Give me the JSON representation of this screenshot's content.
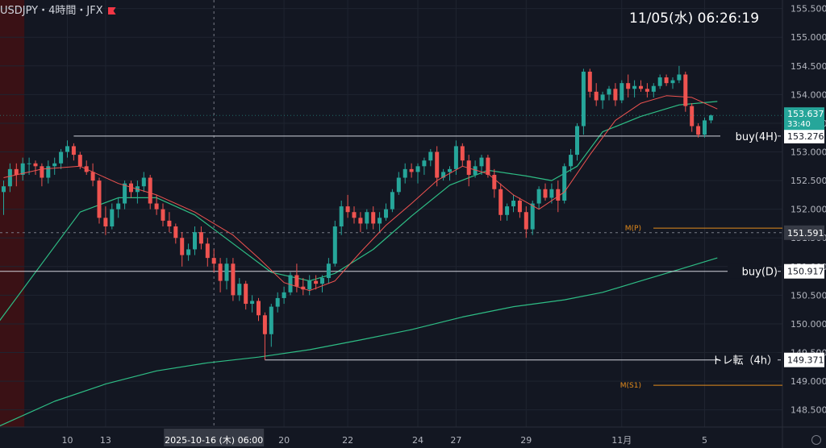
{
  "header": {
    "symbol_info": "USDJPY・4時間・JFX",
    "datetime": "11/05(水)   06:26:19"
  },
  "colors": {
    "background": "#131722",
    "up": "#26a69a",
    "down": "#ef5350",
    "ma_short": "#ef5350",
    "ma_mid": "#2ebd85",
    "ma_long": "#2ebd85",
    "pivot_line": "#e38b1c",
    "hline": "#d1d4dc",
    "grid": "#1f2430"
  },
  "chart_data": {
    "type": "candlestick",
    "title": "",
    "ylim": [
      148.2,
      155.65
    ],
    "y_ticks": [
      "155.500",
      "155.000",
      "154.500",
      "154.000",
      "153.500",
      "153.000",
      "152.500",
      "152.000",
      "151.500",
      "151.000",
      "150.500",
      "150.000",
      "149.500",
      "149.000",
      "148.500"
    ],
    "x_ticks": [
      {
        "label": "10",
        "i": 10
      },
      {
        "label": "13",
        "i": 16
      },
      {
        "label": "20",
        "i": 44
      },
      {
        "label": "22",
        "i": 54
      },
      {
        "label": "24",
        "i": 65
      },
      {
        "label": "27",
        "i": 71
      },
      {
        "label": "29",
        "i": 82
      },
      {
        "label": "11月",
        "i": 97
      },
      {
        "label": "5",
        "i": 110
      }
    ],
    "crosshair": {
      "x_label": "2025-10-16 (木)  06:00",
      "i": 33,
      "y_price": 151.591,
      "y_label": "151.591"
    },
    "ohlc": [
      [
        152.3,
        152.5,
        151.9,
        152.4
      ],
      [
        152.4,
        152.8,
        152.3,
        152.7
      ],
      [
        152.7,
        152.8,
        152.4,
        152.6
      ],
      [
        152.6,
        152.9,
        152.5,
        152.8
      ],
      [
        152.8,
        152.9,
        152.6,
        152.8
      ],
      [
        152.8,
        152.85,
        152.6,
        152.75
      ],
      [
        152.75,
        152.8,
        152.4,
        152.55
      ],
      [
        152.55,
        152.85,
        152.45,
        152.75
      ],
      [
        152.75,
        152.9,
        152.6,
        152.8
      ],
      [
        152.8,
        153.05,
        152.7,
        153.0
      ],
      [
        153.0,
        153.2,
        152.9,
        153.1
      ],
      [
        153.1,
        153.15,
        152.85,
        152.95
      ],
      [
        152.95,
        153.0,
        152.7,
        152.75
      ],
      [
        152.75,
        152.85,
        152.6,
        152.65
      ],
      [
        152.65,
        152.8,
        152.4,
        152.5
      ],
      [
        152.5,
        152.55,
        151.75,
        151.85
      ],
      [
        151.85,
        152.05,
        151.55,
        151.7
      ],
      [
        151.7,
        152.1,
        151.65,
        152.0
      ],
      [
        152.0,
        152.2,
        151.85,
        152.1
      ],
      [
        152.1,
        152.5,
        152.0,
        152.45
      ],
      [
        152.45,
        152.5,
        152.2,
        152.3
      ],
      [
        152.3,
        152.5,
        152.1,
        152.4
      ],
      [
        152.4,
        152.65,
        152.3,
        152.55
      ],
      [
        152.55,
        152.6,
        152.0,
        152.1
      ],
      [
        152.1,
        152.25,
        151.9,
        152.0
      ],
      [
        152.0,
        152.1,
        151.7,
        151.8
      ],
      [
        151.8,
        151.95,
        151.6,
        151.7
      ],
      [
        151.7,
        151.75,
        151.4,
        151.5
      ],
      [
        151.5,
        151.6,
        151.0,
        151.2
      ],
      [
        151.2,
        151.4,
        151.1,
        151.3
      ],
      [
        151.3,
        151.7,
        151.2,
        151.6
      ],
      [
        151.6,
        151.7,
        151.3,
        151.4
      ],
      [
        151.4,
        151.5,
        151.0,
        151.15
      ],
      [
        151.15,
        151.3,
        150.9,
        151.05
      ],
      [
        151.05,
        151.15,
        150.55,
        150.75
      ],
      [
        150.75,
        151.15,
        150.6,
        151.05
      ],
      [
        151.05,
        151.15,
        150.4,
        150.5
      ],
      [
        150.5,
        150.8,
        150.4,
        150.7
      ],
      [
        150.7,
        150.75,
        150.25,
        150.35
      ],
      [
        150.35,
        150.5,
        150.2,
        150.4
      ],
      [
        150.4,
        150.45,
        150.05,
        150.15
      ],
      [
        150.15,
        150.2,
        149.37,
        149.82
      ],
      [
        149.82,
        150.35,
        149.6,
        150.3
      ],
      [
        150.3,
        150.55,
        150.2,
        150.45
      ],
      [
        150.45,
        150.65,
        150.35,
        150.55
      ],
      [
        150.55,
        150.9,
        150.5,
        150.85
      ],
      [
        150.85,
        151.05,
        150.55,
        150.65
      ],
      [
        150.65,
        150.8,
        150.5,
        150.6
      ],
      [
        150.6,
        150.85,
        150.5,
        150.75
      ],
      [
        150.75,
        150.85,
        150.6,
        150.7
      ],
      [
        150.7,
        150.85,
        150.55,
        150.8
      ],
      [
        150.8,
        151.15,
        150.7,
        151.05
      ],
      [
        151.05,
        151.8,
        151.0,
        151.7
      ],
      [
        151.7,
        152.15,
        151.55,
        152.05
      ],
      [
        152.05,
        152.25,
        151.85,
        151.95
      ],
      [
        151.95,
        152.05,
        151.75,
        151.85
      ],
      [
        151.85,
        151.95,
        151.6,
        151.75
      ],
      [
        151.75,
        152.0,
        151.65,
        151.95
      ],
      [
        151.95,
        152.05,
        151.65,
        151.75
      ],
      [
        151.75,
        151.95,
        151.6,
        151.85
      ],
      [
        151.85,
        152.1,
        151.8,
        152.0
      ],
      [
        152.0,
        152.35,
        151.95,
        152.3
      ],
      [
        152.3,
        152.65,
        152.25,
        152.55
      ],
      [
        152.55,
        152.8,
        152.45,
        152.7
      ],
      [
        152.7,
        152.8,
        152.55,
        152.65
      ],
      [
        152.65,
        152.8,
        152.45,
        152.75
      ],
      [
        152.75,
        152.9,
        152.6,
        152.85
      ],
      [
        152.85,
        153.05,
        152.75,
        153.0
      ],
      [
        153.0,
        153.1,
        152.4,
        152.55
      ],
      [
        152.55,
        152.7,
        152.5,
        152.65
      ],
      [
        152.65,
        152.75,
        152.5,
        152.7
      ],
      [
        152.7,
        153.2,
        152.6,
        153.1
      ],
      [
        153.1,
        153.15,
        152.75,
        152.85
      ],
      [
        152.85,
        152.95,
        152.4,
        152.6
      ],
      [
        152.6,
        152.85,
        152.55,
        152.75
      ],
      [
        152.75,
        152.95,
        152.6,
        152.9
      ],
      [
        152.9,
        152.95,
        152.55,
        152.6
      ],
      [
        152.6,
        152.7,
        152.2,
        152.35
      ],
      [
        152.35,
        152.45,
        151.8,
        151.9
      ],
      [
        151.9,
        152.1,
        151.8,
        152.05
      ],
      [
        152.05,
        152.25,
        151.95,
        152.15
      ],
      [
        152.15,
        152.2,
        151.85,
        151.95
      ],
      [
        151.95,
        152.05,
        151.5,
        151.65
      ],
      [
        151.65,
        152.15,
        151.55,
        152.1
      ],
      [
        152.1,
        152.4,
        152.0,
        152.35
      ],
      [
        152.35,
        152.45,
        152.15,
        152.2
      ],
      [
        152.2,
        152.45,
        152.1,
        152.35
      ],
      [
        152.35,
        152.5,
        151.95,
        152.15
      ],
      [
        152.15,
        152.8,
        152.1,
        152.75
      ],
      [
        152.75,
        153.05,
        152.65,
        152.95
      ],
      [
        152.95,
        153.5,
        152.85,
        153.45
      ],
      [
        153.45,
        154.45,
        153.3,
        154.4
      ],
      [
        154.4,
        154.45,
        153.95,
        154.05
      ],
      [
        154.05,
        154.2,
        153.8,
        153.9
      ],
      [
        153.9,
        154.05,
        153.75,
        154.0
      ],
      [
        154.0,
        154.15,
        153.9,
        154.1
      ],
      [
        154.1,
        154.2,
        153.8,
        153.9
      ],
      [
        153.9,
        154.25,
        153.85,
        154.2
      ],
      [
        154.2,
        154.35,
        153.95,
        154.1
      ],
      [
        154.1,
        154.25,
        153.95,
        154.15
      ],
      [
        154.15,
        154.25,
        154.05,
        154.1
      ],
      [
        154.1,
        154.2,
        153.95,
        154.05
      ],
      [
        154.05,
        154.2,
        153.95,
        154.15
      ],
      [
        154.15,
        154.35,
        154.1,
        154.3
      ],
      [
        154.3,
        154.35,
        154.15,
        154.2
      ],
      [
        154.2,
        154.3,
        154.1,
        154.25
      ],
      [
        154.25,
        154.5,
        154.2,
        154.35
      ],
      [
        154.35,
        154.4,
        153.7,
        153.8
      ],
      [
        153.8,
        153.85,
        153.35,
        153.45
      ],
      [
        153.45,
        153.5,
        153.25,
        153.3
      ],
      [
        153.3,
        153.6,
        153.25,
        153.55
      ],
      [
        153.55,
        153.65,
        153.5,
        153.637
      ]
    ],
    "ma_short": [
      [
        0,
        152.55
      ],
      [
        6,
        152.7
      ],
      [
        12,
        152.75
      ],
      [
        18,
        152.45
      ],
      [
        24,
        152.25
      ],
      [
        30,
        151.95
      ],
      [
        36,
        151.55
      ],
      [
        40,
        151.15
      ],
      [
        44,
        150.72
      ],
      [
        48,
        150.58
      ],
      [
        52,
        150.75
      ],
      [
        56,
        151.25
      ],
      [
        60,
        151.72
      ],
      [
        64,
        152.1
      ],
      [
        68,
        152.5
      ],
      [
        72,
        152.75
      ],
      [
        76,
        152.62
      ],
      [
        80,
        152.25
      ],
      [
        84,
        152.0
      ],
      [
        88,
        152.3
      ],
      [
        92,
        152.95
      ],
      [
        96,
        153.55
      ],
      [
        100,
        153.85
      ],
      [
        104,
        153.98
      ],
      [
        108,
        153.95
      ],
      [
        112,
        153.75
      ]
    ],
    "ma_mid": [
      [
        -1,
        150.0
      ],
      [
        6,
        151.05
      ],
      [
        12,
        151.95
      ],
      [
        18,
        152.2
      ],
      [
        24,
        152.2
      ],
      [
        30,
        151.9
      ],
      [
        36,
        151.4
      ],
      [
        42,
        150.9
      ],
      [
        48,
        150.75
      ],
      [
        52,
        150.88
      ],
      [
        58,
        151.3
      ],
      [
        64,
        151.88
      ],
      [
        70,
        152.42
      ],
      [
        76,
        152.68
      ],
      [
        82,
        152.58
      ],
      [
        86,
        152.5
      ],
      [
        90,
        152.75
      ],
      [
        94,
        153.35
      ],
      [
        100,
        153.62
      ],
      [
        106,
        153.82
      ],
      [
        112,
        153.88
      ]
    ],
    "ma_long": [
      [
        -1,
        148.2
      ],
      [
        8,
        148.65
      ],
      [
        16,
        148.95
      ],
      [
        24,
        149.18
      ],
      [
        32,
        149.32
      ],
      [
        40,
        149.42
      ],
      [
        48,
        149.55
      ],
      [
        56,
        149.72
      ],
      [
        64,
        149.9
      ],
      [
        72,
        150.12
      ],
      [
        80,
        150.3
      ],
      [
        88,
        150.42
      ],
      [
        94,
        150.55
      ],
      [
        100,
        150.75
      ],
      [
        106,
        150.95
      ],
      [
        112,
        151.15
      ]
    ],
    "hlines": [
      {
        "label": "buy(4H)",
        "price": 153.276,
        "i_start": 11,
        "price_label": "153.276"
      },
      {
        "label": "buy(D)",
        "price": 150.917,
        "i_start": -1,
        "price_label": "150.917"
      },
      {
        "label": "トレ転（4h）",
        "price": 149.371,
        "i_start": 41,
        "price_label": "149.371"
      }
    ],
    "pivots": [
      {
        "label": "M(P)",
        "price": 151.67
      },
      {
        "label": "M(S1)",
        "price": 148.93
      }
    ],
    "current": {
      "price_label": "153.637",
      "countdown": "33:40"
    },
    "highlight_range": [
      -1,
      3
    ]
  }
}
